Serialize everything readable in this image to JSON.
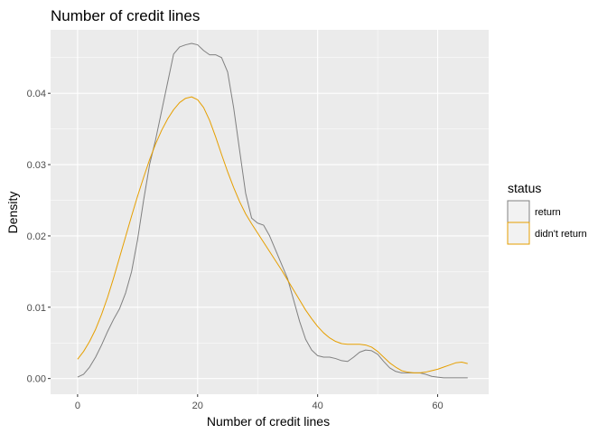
{
  "chart_data": {
    "type": "line",
    "title": "Number of credit lines",
    "xlabel": "Number of credit lines",
    "ylabel": "Density",
    "xlim": [
      -4.5,
      68.5
    ],
    "ylim": [
      -0.0022,
      0.0489
    ],
    "xticks": [
      0,
      20,
      40,
      60
    ],
    "xtick_labels": [
      "0",
      "20",
      "40",
      "60"
    ],
    "yticks": [
      0.0,
      0.01,
      0.02,
      0.03,
      0.04
    ],
    "ytick_labels": [
      "0.00",
      "0.01",
      "0.02",
      "0.03",
      "0.04"
    ],
    "grid": true,
    "legend": {
      "title": "status",
      "placement": "right"
    },
    "series": [
      {
        "name": "return",
        "color": "#808080",
        "x": [
          0,
          1,
          2,
          3,
          4,
          5,
          6,
          7,
          8,
          9,
          10,
          11,
          12,
          13,
          14,
          15,
          16,
          17,
          18,
          19,
          20,
          21,
          22,
          23,
          24,
          25,
          26,
          27,
          28,
          29,
          30,
          31,
          32,
          33,
          34,
          35,
          36,
          37,
          38,
          39,
          40,
          41,
          42,
          43,
          44,
          45,
          46,
          47,
          48,
          49,
          50,
          51,
          52,
          53,
          54,
          55,
          56,
          57,
          58,
          59,
          60,
          61,
          62,
          63,
          64,
          65
        ],
        "y": [
          0.0002,
          0.0006,
          0.0016,
          0.003,
          0.0047,
          0.0066,
          0.0083,
          0.0098,
          0.012,
          0.015,
          0.0195,
          0.025,
          0.03,
          0.0335,
          0.0375,
          0.0415,
          0.0455,
          0.0465,
          0.0468,
          0.047,
          0.0468,
          0.046,
          0.0454,
          0.0454,
          0.045,
          0.043,
          0.038,
          0.032,
          0.026,
          0.0225,
          0.0218,
          0.0215,
          0.02,
          0.018,
          0.016,
          0.014,
          0.011,
          0.008,
          0.0055,
          0.004,
          0.0032,
          0.003,
          0.003,
          0.0028,
          0.0025,
          0.0024,
          0.003,
          0.0037,
          0.004,
          0.0039,
          0.0034,
          0.0024,
          0.0015,
          0.001,
          0.0008,
          0.0008,
          0.0008,
          0.0008,
          0.0006,
          0.0003,
          0.0002,
          0.0001,
          0.0001,
          0.0001,
          0.0001,
          0.0001
        ]
      },
      {
        "name": "didn't return",
        "color": "#E69F00",
        "x": [
          0,
          1,
          2,
          3,
          4,
          5,
          6,
          7,
          8,
          9,
          10,
          11,
          12,
          13,
          14,
          15,
          16,
          17,
          18,
          19,
          20,
          21,
          22,
          23,
          24,
          25,
          26,
          27,
          28,
          29,
          30,
          31,
          32,
          33,
          34,
          35,
          36,
          37,
          38,
          39,
          40,
          41,
          42,
          43,
          44,
          45,
          46,
          47,
          48,
          49,
          50,
          51,
          52,
          53,
          54,
          55,
          56,
          57,
          58,
          59,
          60,
          61,
          62,
          63,
          64,
          65
        ],
        "y": [
          0.0027,
          0.0038,
          0.0052,
          0.0069,
          0.009,
          0.0114,
          0.0141,
          0.017,
          0.0199,
          0.0228,
          0.0256,
          0.0282,
          0.0307,
          0.0329,
          0.0348,
          0.0364,
          0.0377,
          0.0387,
          0.0393,
          0.0395,
          0.0391,
          0.038,
          0.0362,
          0.0339,
          0.0314,
          0.029,
          0.0268,
          0.0248,
          0.0231,
          0.0217,
          0.0204,
          0.0191,
          0.0178,
          0.0165,
          0.0152,
          0.0138,
          0.0124,
          0.011,
          0.0096,
          0.0084,
          0.0073,
          0.0064,
          0.0057,
          0.0052,
          0.0049,
          0.0048,
          0.0048,
          0.0048,
          0.0047,
          0.0044,
          0.0038,
          0.003,
          0.0022,
          0.0016,
          0.0011,
          0.0009,
          0.0008,
          0.0008,
          0.0009,
          0.0011,
          0.0013,
          0.0016,
          0.0019,
          0.0022,
          0.0023,
          0.0021
        ]
      }
    ]
  }
}
